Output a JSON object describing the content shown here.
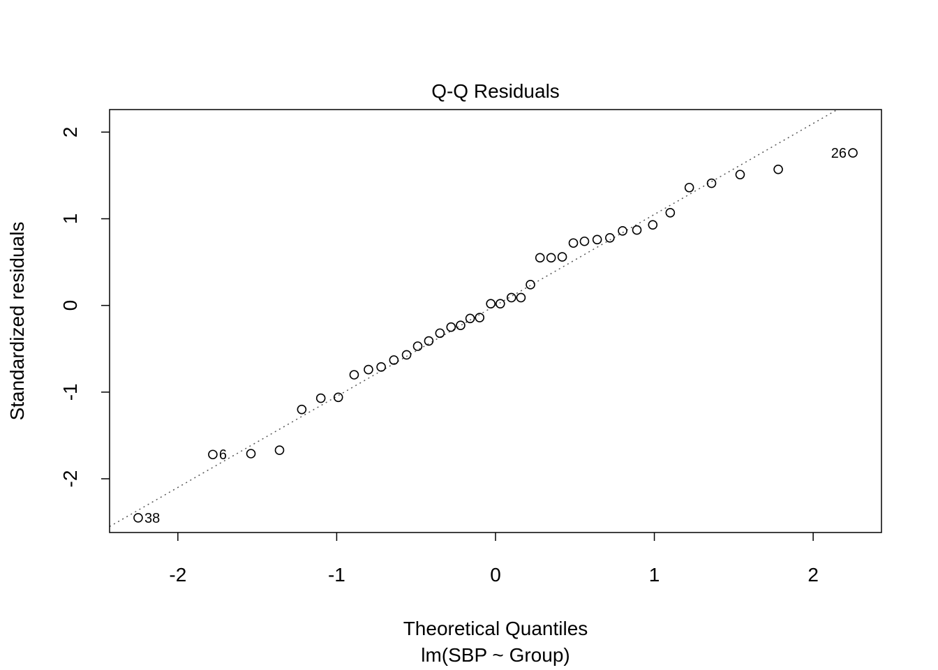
{
  "chart_data": {
    "type": "scatter",
    "title": "Q-Q Residuals",
    "xlabel": "Theoretical Quantiles",
    "xlabel2": "lm(SBP ~ Group)",
    "ylabel": "Standardized residuals",
    "xlim": [
      -2.43,
      2.43
    ],
    "ylim": [
      -2.62,
      2.26
    ],
    "x_ticks": [
      -2,
      -1,
      0,
      1,
      2
    ],
    "x_tick_labels": [
      "-2",
      "-1",
      "0",
      "1",
      "2"
    ],
    "y_ticks": [
      -2,
      -1,
      0,
      1,
      2
    ],
    "y_tick_labels": [
      "-2",
      "-1",
      "0",
      "1",
      "2"
    ],
    "grid": false,
    "legend": "none",
    "reference_line": {
      "intercept": 0.0,
      "slope": 1.05
    },
    "points": [
      {
        "x": -2.25,
        "y": -2.45,
        "label": "38"
      },
      {
        "x": -1.78,
        "y": -1.72,
        "label": "6"
      },
      {
        "x": -1.54,
        "y": -1.71
      },
      {
        "x": -1.36,
        "y": -1.67
      },
      {
        "x": -1.22,
        "y": -1.2
      },
      {
        "x": -1.1,
        "y": -1.07
      },
      {
        "x": -0.99,
        "y": -1.06
      },
      {
        "x": -0.89,
        "y": -0.8
      },
      {
        "x": -0.8,
        "y": -0.74
      },
      {
        "x": -0.72,
        "y": -0.71
      },
      {
        "x": -0.64,
        "y": -0.63
      },
      {
        "x": -0.56,
        "y": -0.57
      },
      {
        "x": -0.49,
        "y": -0.47
      },
      {
        "x": -0.42,
        "y": -0.41
      },
      {
        "x": -0.35,
        "y": -0.32
      },
      {
        "x": -0.28,
        "y": -0.25
      },
      {
        "x": -0.22,
        "y": -0.23
      },
      {
        "x": -0.16,
        "y": -0.15
      },
      {
        "x": -0.1,
        "y": -0.14
      },
      {
        "x": -0.03,
        "y": 0.02
      },
      {
        "x": 0.03,
        "y": 0.02
      },
      {
        "x": 0.1,
        "y": 0.09
      },
      {
        "x": 0.16,
        "y": 0.09
      },
      {
        "x": 0.22,
        "y": 0.24
      },
      {
        "x": 0.28,
        "y": 0.55
      },
      {
        "x": 0.35,
        "y": 0.55
      },
      {
        "x": 0.42,
        "y": 0.56
      },
      {
        "x": 0.49,
        "y": 0.72
      },
      {
        "x": 0.56,
        "y": 0.74
      },
      {
        "x": 0.64,
        "y": 0.76
      },
      {
        "x": 0.72,
        "y": 0.78
      },
      {
        "x": 0.8,
        "y": 0.86
      },
      {
        "x": 0.89,
        "y": 0.87
      },
      {
        "x": 0.99,
        "y": 0.93
      },
      {
        "x": 1.1,
        "y": 1.07
      },
      {
        "x": 1.22,
        "y": 1.36
      },
      {
        "x": 1.36,
        "y": 1.41
      },
      {
        "x": 1.54,
        "y": 1.51
      },
      {
        "x": 1.78,
        "y": 1.57
      },
      {
        "x": 2.25,
        "y": 1.76,
        "label": "26"
      }
    ]
  }
}
